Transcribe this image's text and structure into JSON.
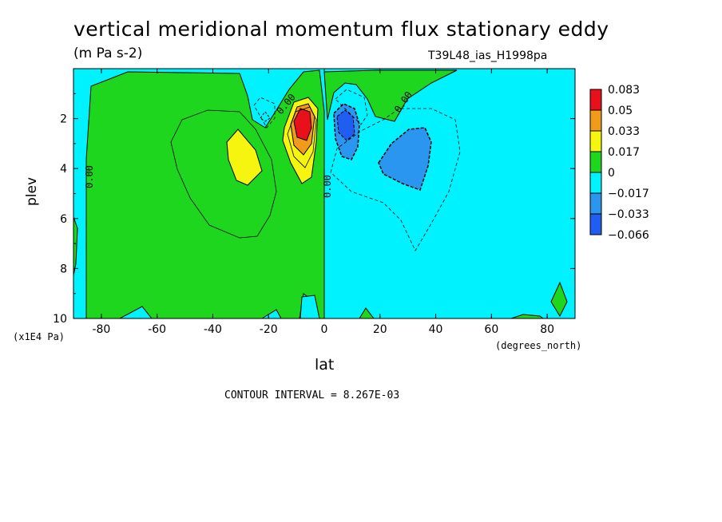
{
  "title": "vertical meridional momentum flux stationary eddy",
  "units": "(m Pa s-2)",
  "run_id": "T39L48_ias_H1998pa",
  "contour_interval": "CONTOUR INTERVAL = 8.267E-03",
  "colors": {
    "level_0_083": "#e8101a",
    "level_0_05": "#f29a1a",
    "level_0_033": "#f5f50f",
    "level_0_017": "#1fd61f",
    "level_0": "#00f2ff",
    "level_neg_0_017": "#2a96f0",
    "level_neg_0_033": "#1f5ef0"
  },
  "chart_data": {
    "type": "heatmap",
    "xlabel": "lat",
    "x_unit": "(degrees_north)",
    "ylabel": "plev",
    "y_unit": "(x1E4 Pa)",
    "xlim": [
      -90,
      90
    ],
    "ylim": [
      0,
      10
    ],
    "y_inverted": true,
    "x_ticks": [
      "-80",
      "-60",
      "-40",
      "-20",
      "0",
      "20",
      "40",
      "60",
      "80"
    ],
    "x_tick_values": [
      -80,
      -60,
      -40,
      -20,
      0,
      20,
      40,
      60,
      80
    ],
    "y_ticks": [
      "2",
      "4",
      "6",
      "8",
      "10"
    ],
    "y_tick_values": [
      2,
      4,
      6,
      8,
      10
    ],
    "colorbar_labels": [
      "0.083",
      "0.05",
      "0.033",
      "0.017",
      "0",
      "−0.017",
      "−0.033",
      "−0.066"
    ],
    "contour_labels": [
      "0.00",
      "0.00",
      "0.00",
      "0.00"
    ],
    "features": [
      {
        "kind": "max",
        "lat": -8,
        "plev": 2.4,
        "value": 0.083
      },
      {
        "kind": "max",
        "lat": -28,
        "plev": 3.8,
        "value": 0.033
      },
      {
        "kind": "min",
        "lat": 8,
        "plev": 2.5,
        "value": -0.04
      },
      {
        "kind": "min",
        "lat": 30,
        "plev": 3.7,
        "value": -0.033
      }
    ]
  }
}
